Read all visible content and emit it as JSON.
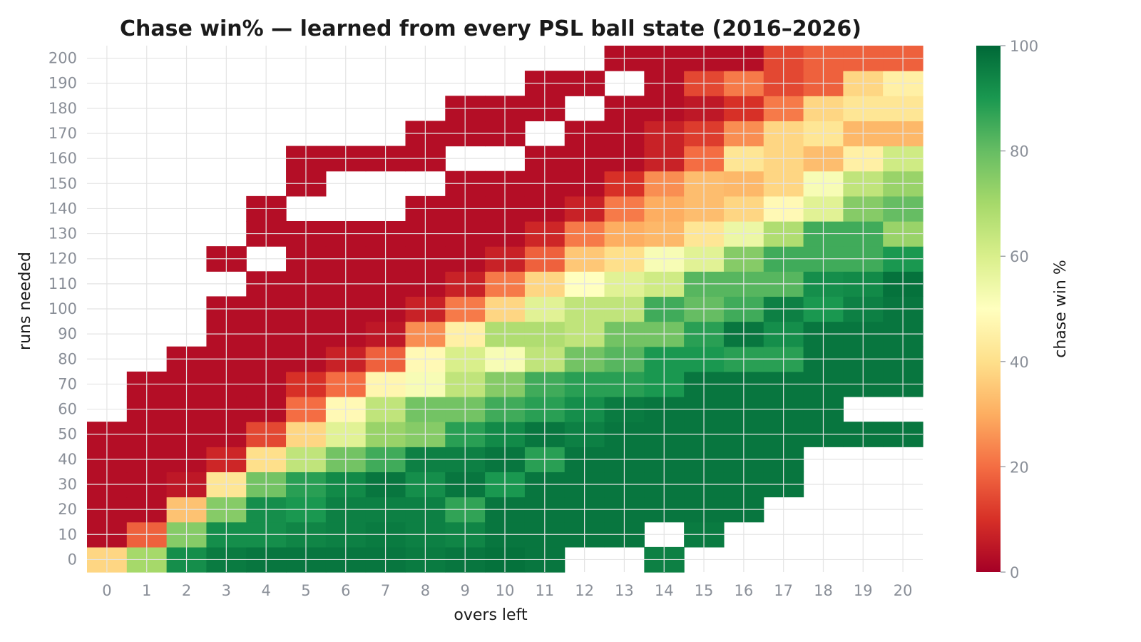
{
  "chart_data": {
    "type": "heatmap",
    "title": "Chase win% — learned from every PSL ball state (2016–2026)",
    "xlabel": "overs left",
    "ylabel": "runs needed",
    "x_categories": [
      "0",
      "1",
      "2",
      "3",
      "4",
      "5",
      "6",
      "7",
      "8",
      "9",
      "10",
      "11",
      "12",
      "13",
      "14",
      "15",
      "16",
      "17",
      "18",
      "19",
      "20"
    ],
    "y_categories": [
      "0",
      "10",
      "20",
      "30",
      "40",
      "50",
      "60",
      "70",
      "80",
      "90",
      "100",
      "110",
      "120",
      "130",
      "140",
      "150",
      "160",
      "170",
      "180",
      "190",
      "200"
    ],
    "values": [
      [
        38,
        70,
        92,
        96,
        97,
        97,
        97,
        97,
        96,
        97,
        98,
        97,
        null,
        null,
        95,
        null,
        null,
        null,
        null,
        null,
        null
      ],
      [
        3,
        18,
        75,
        92,
        92,
        94,
        95,
        96,
        95,
        94,
        97,
        97,
        97,
        97,
        null,
        96,
        null,
        null,
        null,
        null,
        null
      ],
      [
        3,
        3,
        34,
        75,
        92,
        90,
        95,
        95,
        95,
        87,
        97,
        97,
        97,
        97,
        97,
        97,
        97,
        null,
        null,
        null,
        null
      ],
      [
        3,
        3,
        5,
        42,
        78,
        88,
        93,
        97,
        92,
        97,
        90,
        97,
        97,
        97,
        97,
        97,
        97,
        97,
        null,
        null,
        null
      ],
      [
        3,
        3,
        3,
        8,
        40,
        65,
        78,
        85,
        95,
        95,
        97,
        88,
        97,
        97,
        97,
        97,
        97,
        97,
        null,
        null,
        null
      ],
      [
        3,
        3,
        3,
        3,
        14,
        38,
        58,
        72,
        75,
        88,
        93,
        97,
        95,
        97,
        97,
        97,
        97,
        97,
        97,
        97,
        97
      ],
      [
        null,
        3,
        3,
        3,
        3,
        20,
        48,
        65,
        78,
        78,
        85,
        88,
        92,
        96,
        97,
        97,
        97,
        97,
        97,
        null,
        null
      ],
      [
        null,
        3,
        3,
        3,
        3,
        10,
        20,
        47,
        52,
        65,
        75,
        85,
        88,
        88,
        90,
        97,
        97,
        97,
        97,
        97,
        97
      ],
      [
        null,
        null,
        3,
        3,
        3,
        3,
        7,
        18,
        48,
        60,
        52,
        65,
        78,
        82,
        90,
        90,
        88,
        88,
        97,
        97,
        97
      ],
      [
        null,
        null,
        null,
        3,
        3,
        3,
        3,
        5,
        25,
        45,
        68,
        68,
        65,
        78,
        78,
        88,
        97,
        92,
        97,
        97,
        97
      ],
      [
        null,
        null,
        null,
        3,
        3,
        3,
        3,
        3,
        7,
        22,
        38,
        58,
        65,
        65,
        85,
        80,
        85,
        95,
        90,
        95,
        97
      ],
      [
        null,
        null,
        null,
        null,
        3,
        3,
        3,
        3,
        3,
        7,
        22,
        38,
        50,
        58,
        62,
        82,
        82,
        82,
        92,
        93,
        98
      ],
      [
        null,
        null,
        null,
        3,
        null,
        3,
        3,
        3,
        3,
        3,
        7,
        18,
        35,
        40,
        52,
        58,
        75,
        85,
        85,
        85,
        90
      ],
      [
        null,
        null,
        null,
        null,
        3,
        3,
        3,
        3,
        3,
        3,
        3,
        8,
        22,
        30,
        32,
        42,
        55,
        68,
        85,
        85,
        72
      ],
      [
        null,
        null,
        null,
        null,
        3,
        null,
        null,
        null,
        3,
        3,
        3,
        3,
        7,
        22,
        30,
        33,
        38,
        48,
        58,
        75,
        80
      ],
      [
        null,
        null,
        null,
        null,
        null,
        3,
        null,
        null,
        null,
        3,
        3,
        3,
        3,
        10,
        25,
        33,
        32,
        38,
        52,
        65,
        72
      ],
      [
        null,
        null,
        null,
        null,
        null,
        3,
        3,
        3,
        3,
        null,
        null,
        3,
        3,
        3,
        7,
        20,
        42,
        38,
        33,
        45,
        62
      ],
      [
        null,
        null,
        null,
        null,
        null,
        null,
        null,
        null,
        3,
        3,
        3,
        null,
        3,
        3,
        7,
        12,
        25,
        38,
        42,
        32,
        32
      ],
      [
        null,
        null,
        null,
        null,
        null,
        null,
        null,
        null,
        null,
        3,
        3,
        3,
        null,
        3,
        3,
        5,
        10,
        22,
        38,
        42,
        42
      ],
      [
        null,
        null,
        null,
        null,
        null,
        null,
        null,
        null,
        null,
        null,
        null,
        3,
        3,
        null,
        3,
        14,
        22,
        14,
        18,
        38,
        45
      ],
      [
        null,
        null,
        null,
        null,
        null,
        null,
        null,
        null,
        null,
        null,
        null,
        null,
        null,
        3,
        3,
        3,
        3,
        14,
        18,
        18,
        18
      ]
    ],
    "colorbar": {
      "label": "chase win %",
      "min": 0,
      "max": 100,
      "ticks": [
        "0",
        "20",
        "40",
        "60",
        "80",
        "100"
      ],
      "colormap": "RdYlGn",
      "stops": [
        "#a50026",
        "#d73027",
        "#f46d43",
        "#fdae61",
        "#fee08b",
        "#ffffbf",
        "#d9ef8b",
        "#a6d96a",
        "#66bd63",
        "#1a9850",
        "#006837"
      ]
    },
    "grid": true
  }
}
